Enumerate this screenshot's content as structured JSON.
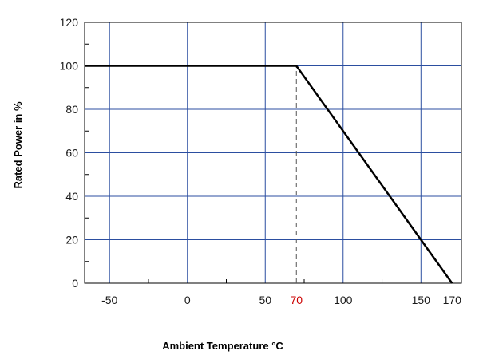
{
  "chart_data": {
    "type": "line",
    "title": "",
    "xlabel": "Ambient Temperature °C",
    "ylabel": "Rated Power in %",
    "xlim": [
      -66,
      176
    ],
    "ylim": [
      0,
      120
    ],
    "x_ticks": [
      -50,
      0,
      50,
      100,
      150
    ],
    "extra_x_ticks": [
      {
        "label": "70",
        "value": 70,
        "color": "#cc0000"
      },
      {
        "label": "170",
        "value": 170,
        "color": "#1a1a1a"
      }
    ],
    "y_ticks": [
      0,
      20,
      40,
      60,
      80,
      100,
      120
    ],
    "grid": true,
    "grid_color": "#2b4ea0",
    "series": [
      {
        "color": "#000000",
        "points": [
          [
            -66,
            100
          ],
          [
            70,
            100
          ],
          [
            170,
            0
          ]
        ]
      }
    ],
    "reference_lines": [
      {
        "x": 70,
        "y_from": 0,
        "y_to": 100,
        "style": "dashed",
        "color": "#555555"
      }
    ]
  }
}
